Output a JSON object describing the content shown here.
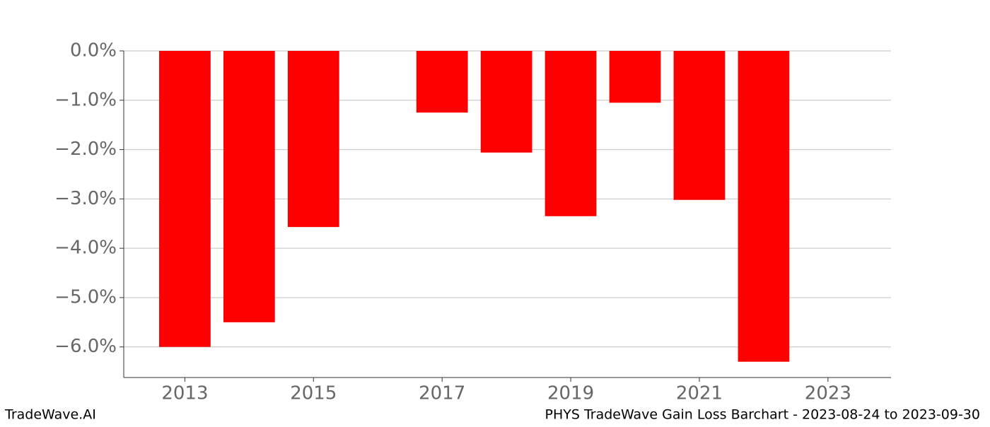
{
  "chart_data": {
    "type": "bar",
    "title": "PHYS TradeWave Gain Loss Barchart - 2023-08-24 to 2023-09-30",
    "watermark": "TradeWave.AI",
    "x": [
      2013,
      2014,
      2015,
      2017,
      2018,
      2019,
      2020,
      2021,
      2022
    ],
    "values": [
      -6.0,
      -5.5,
      -3.57,
      -1.25,
      -2.06,
      -3.35,
      -1.05,
      -3.02,
      -6.3
    ],
    "color": "#ff0000",
    "xlim": [
      2012.05,
      2023.98
    ],
    "xticks": [
      2013,
      2015,
      2017,
      2019,
      2021,
      2023
    ],
    "ylim": [
      -6.62,
      0
    ],
    "yticks": [
      {
        "value": 0,
        "label": "0.0%"
      },
      {
        "value": -1,
        "label": "−1.0%"
      },
      {
        "value": -2,
        "label": "−2.0%"
      },
      {
        "value": -3,
        "label": "−3.0%"
      },
      {
        "value": -4,
        "label": "−4.0%"
      },
      {
        "value": -5,
        "label": "−5.0%"
      },
      {
        "value": -6,
        "label": "−6.0%"
      }
    ],
    "grid": true
  }
}
